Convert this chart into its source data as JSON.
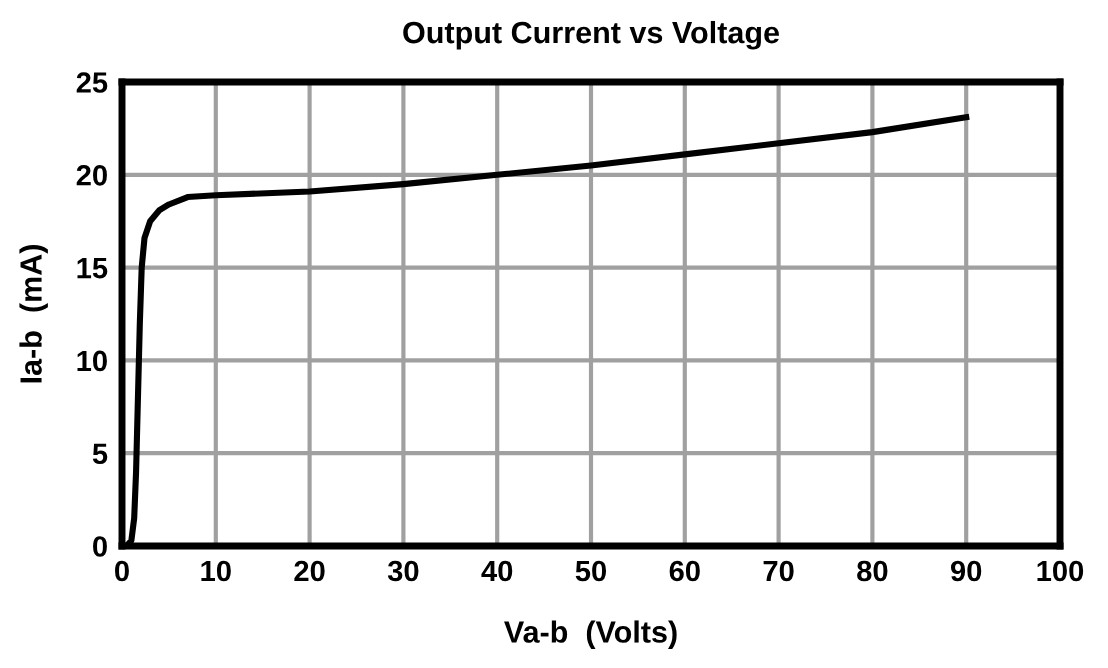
{
  "chart_data": {
    "type": "line",
    "title": "Output Current vs Voltage",
    "xlabel": "Va-b  (Volts)",
    "ylabel": "Ia-b  (mA)",
    "series": [
      {
        "color": "#000000",
        "x": [
          0,
          0.5,
          1,
          1.3,
          1.5,
          1.7,
          1.9,
          2.1,
          2.4,
          3,
          4,
          5,
          7,
          10,
          20,
          30,
          40,
          50,
          60,
          70,
          80,
          90
        ],
        "values": [
          0,
          0,
          0.3,
          1.5,
          4,
          8,
          12,
          15,
          16.6,
          17.5,
          18.1,
          18.4,
          18.8,
          18.9,
          19.1,
          19.5,
          20,
          20.5,
          21.1,
          21.7,
          22.3,
          23.1
        ]
      }
    ],
    "xlim": [
      0,
      100
    ],
    "ylim": [
      0,
      25
    ],
    "xticks": [
      0,
      10,
      20,
      30,
      40,
      50,
      60,
      70,
      80,
      90,
      100
    ],
    "yticks": [
      0,
      5,
      10,
      15,
      20,
      25
    ],
    "grid": true,
    "legend": false,
    "marker": "none",
    "line_style": "solid"
  }
}
